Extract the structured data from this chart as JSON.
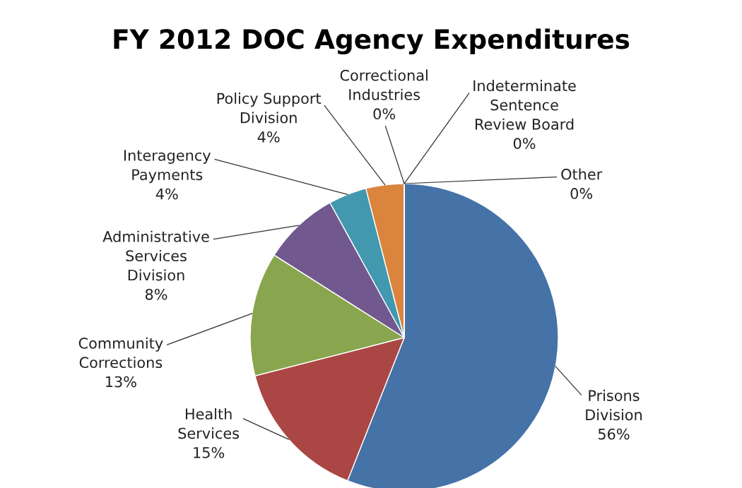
{
  "chart_data": {
    "type": "pie",
    "title": "FY 2012 DOC Agency Expenditures",
    "categories": [
      "Prisons\nDivision",
      "Health\nServices",
      "Community\nCorrections",
      "Administrative\nServices\nDivision",
      "Interagency\nPayments",
      "Policy Support\nDivision",
      "Correctional\nIndustries",
      "Indeterminate\nSentence\nReview Board",
      "Other"
    ],
    "values": [
      56,
      15,
      13,
      8,
      4,
      4,
      0,
      0,
      0
    ],
    "value_labels": [
      "56%",
      "15%",
      "13%",
      "8%",
      "4%",
      "4%",
      "0%",
      "0%",
      "0%"
    ],
    "colors": [
      "#4572a7",
      "#aa4643",
      "#89a54e",
      "#71588f",
      "#4198af",
      "#db843d",
      "#93a9cf",
      "#d19392",
      "#b9cd96"
    ]
  }
}
